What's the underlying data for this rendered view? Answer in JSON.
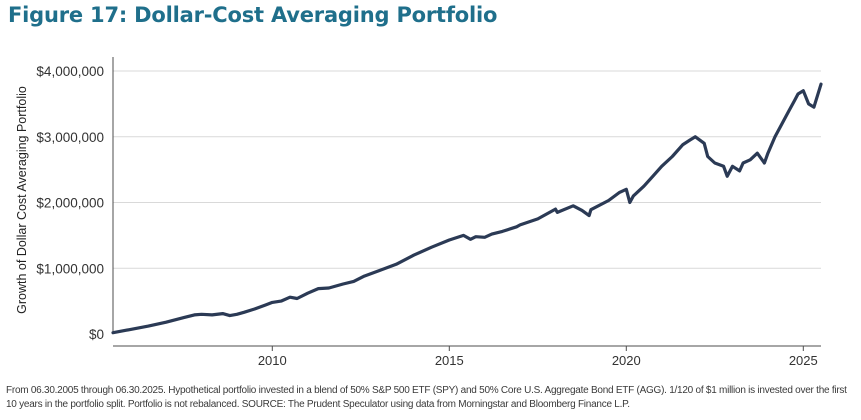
{
  "colors": {
    "title": "#1f6f8b",
    "line": "#2b3a55",
    "grid": "#d9d9d9",
    "axis": "#4d4d4d",
    "text": "#3a3a3a"
  },
  "chart_data": {
    "type": "line",
    "title": "Figure 17: Dollar-Cost Averaging Portfolio",
    "xlabel": "",
    "ylabel": "Growth of Dollar Cost Averaging Portfolio",
    "xlim": [
      2005.5,
      2025.5
    ],
    "ylim": [
      0,
      4000000
    ],
    "grid": true,
    "x_ticks": [
      2010,
      2015,
      2020,
      2025
    ],
    "x_tick_labels": [
      "2010",
      "2015",
      "2020",
      "2025"
    ],
    "y_ticks": [
      0,
      1000000,
      2000000,
      3000000,
      4000000
    ],
    "y_tick_labels": [
      "$0",
      "$1,000,000",
      "$2,000,000",
      "$3,000,000",
      "$4,000,000"
    ],
    "series": [
      {
        "name": "Dollar-Cost Averaging Portfolio",
        "x": [
          2005.5,
          2006.0,
          2006.5,
          2007.0,
          2007.5,
          2007.8,
          2008.0,
          2008.3,
          2008.6,
          2008.8,
          2009.0,
          2009.2,
          2009.5,
          2009.8,
          2010.0,
          2010.25,
          2010.5,
          2010.7,
          2011.0,
          2011.3,
          2011.6,
          2011.8,
          2012.0,
          2012.3,
          2012.6,
          2013.0,
          2013.5,
          2014.0,
          2014.5,
          2015.0,
          2015.4,
          2015.6,
          2015.75,
          2016.0,
          2016.2,
          2016.5,
          2016.9,
          2017.0,
          2017.5,
          2018.0,
          2018.05,
          2018.5,
          2018.75,
          2018.95,
          2019.0,
          2019.5,
          2019.8,
          2020.0,
          2020.1,
          2020.2,
          2020.5,
          2020.75,
          2021.0,
          2021.3,
          2021.6,
          2021.8,
          2021.95,
          2022.2,
          2022.3,
          2022.5,
          2022.75,
          2022.85,
          2023.0,
          2023.2,
          2023.3,
          2023.5,
          2023.7,
          2023.9,
          2024.0,
          2024.2,
          2024.5,
          2024.6,
          2024.75,
          2024.85,
          2025.0,
          2025.15,
          2025.3,
          2025.5
        ],
        "y": [
          20000,
          70000,
          120000,
          180000,
          250000,
          290000,
          300000,
          290000,
          310000,
          280000,
          300000,
          330000,
          380000,
          440000,
          480000,
          500000,
          560000,
          540000,
          620000,
          690000,
          700000,
          730000,
          760000,
          800000,
          880000,
          960000,
          1060000,
          1200000,
          1320000,
          1430000,
          1500000,
          1440000,
          1480000,
          1470000,
          1520000,
          1560000,
          1630000,
          1660000,
          1750000,
          1900000,
          1850000,
          1950000,
          1880000,
          1800000,
          1890000,
          2030000,
          2150000,
          2200000,
          2000000,
          2100000,
          2250000,
          2400000,
          2550000,
          2700000,
          2880000,
          2950000,
          3000000,
          2900000,
          2700000,
          2600000,
          2550000,
          2400000,
          2550000,
          2480000,
          2600000,
          2650000,
          2750000,
          2600000,
          2750000,
          3000000,
          3300000,
          3400000,
          3550000,
          3650000,
          3700000,
          3500000,
          3450000,
          3800000
        ]
      }
    ]
  },
  "footnote": "From 06.30.2005 through 06.30.2025. Hypothetical portfolio invested in a blend of 50% S&P 500 ETF (SPY) and 50% Core U.S. Aggregate Bond ETF (AGG). 1/120 of $1 million is invested over the first 10 years in the portfolio split. Portfolio is not rebalanced. SOURCE: The Prudent Speculator using data from Morningstar and Bloomberg Finance L.P."
}
